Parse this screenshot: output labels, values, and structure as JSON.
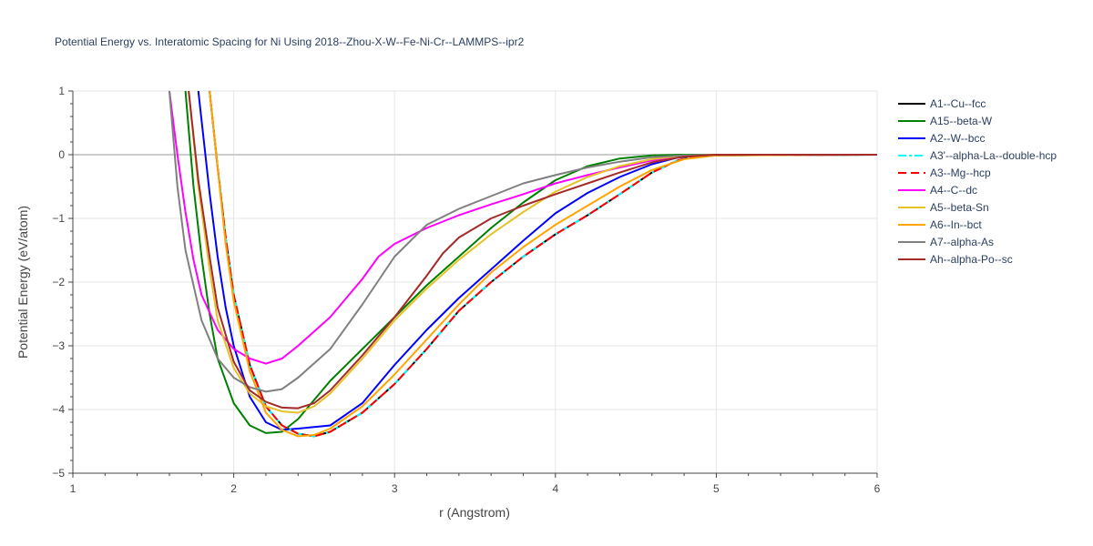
{
  "chart_data": {
    "type": "line",
    "title": "Potential Energy vs. Interatomic Spacing for Ni Using 2018--Zhou-X-W--Fe-Ni-Cr--LAMMPS--ipr2",
    "xlabel": "r (Angstrom)",
    "ylabel": "Potential Energy (eV/atom)",
    "xlim": [
      1,
      6
    ],
    "ylim": [
      -5,
      1
    ],
    "x_ticks": [
      "1",
      "2",
      "3",
      "4",
      "5",
      "6"
    ],
    "y_ticks": [
      "1",
      "0",
      "−1",
      "−2",
      "−3",
      "−4",
      "−5"
    ],
    "grid": true,
    "legend_position": "right",
    "series": [
      {
        "name": "A1--Cu--fcc",
        "color": "#000000",
        "dash": "solid",
        "points": [
          [
            1.85,
            1
          ],
          [
            1.9,
            -0.2
          ],
          [
            1.95,
            -1.3
          ],
          [
            2.0,
            -2.2
          ],
          [
            2.1,
            -3.3
          ],
          [
            2.2,
            -3.95
          ],
          [
            2.3,
            -4.25
          ],
          [
            2.4,
            -4.38
          ],
          [
            2.5,
            -4.42
          ],
          [
            2.6,
            -4.35
          ],
          [
            2.8,
            -4.05
          ],
          [
            3.0,
            -3.6
          ],
          [
            3.2,
            -3.05
          ],
          [
            3.4,
            -2.45
          ],
          [
            3.6,
            -2.0
          ],
          [
            3.8,
            -1.6
          ],
          [
            4.0,
            -1.25
          ],
          [
            4.2,
            -0.95
          ],
          [
            4.4,
            -0.62
          ],
          [
            4.6,
            -0.28
          ],
          [
            4.75,
            -0.1
          ],
          [
            4.85,
            -0.03
          ],
          [
            5.0,
            -0.01
          ],
          [
            6.0,
            0
          ]
        ]
      },
      {
        "name": "A15--beta-W",
        "color": "#008000",
        "dash": "solid",
        "points": [
          [
            1.7,
            1
          ],
          [
            1.75,
            -0.5
          ],
          [
            1.8,
            -1.6
          ],
          [
            1.85,
            -2.5
          ],
          [
            1.9,
            -3.2
          ],
          [
            2.0,
            -3.9
          ],
          [
            2.1,
            -4.25
          ],
          [
            2.2,
            -4.37
          ],
          [
            2.3,
            -4.35
          ],
          [
            2.4,
            -4.15
          ],
          [
            2.5,
            -3.85
          ],
          [
            2.6,
            -3.55
          ],
          [
            2.8,
            -3.05
          ],
          [
            3.0,
            -2.55
          ],
          [
            3.2,
            -2.05
          ],
          [
            3.4,
            -1.6
          ],
          [
            3.6,
            -1.15
          ],
          [
            3.8,
            -0.75
          ],
          [
            4.0,
            -0.4
          ],
          [
            4.2,
            -0.18
          ],
          [
            4.4,
            -0.06
          ],
          [
            4.6,
            -0.01
          ],
          [
            4.8,
            0
          ],
          [
            6.0,
            0
          ]
        ]
      },
      {
        "name": "A2--W--bcc",
        "color": "#0000ff",
        "dash": "solid",
        "points": [
          [
            1.78,
            1
          ],
          [
            1.85,
            -0.6
          ],
          [
            1.9,
            -1.6
          ],
          [
            1.95,
            -2.4
          ],
          [
            2.0,
            -3.0
          ],
          [
            2.1,
            -3.8
          ],
          [
            2.2,
            -4.2
          ],
          [
            2.3,
            -4.32
          ],
          [
            2.4,
            -4.3
          ],
          [
            2.6,
            -4.25
          ],
          [
            2.8,
            -3.9
          ],
          [
            3.0,
            -3.3
          ],
          [
            3.2,
            -2.75
          ],
          [
            3.4,
            -2.25
          ],
          [
            3.6,
            -1.8
          ],
          [
            3.8,
            -1.35
          ],
          [
            4.0,
            -0.92
          ],
          [
            4.2,
            -0.6
          ],
          [
            4.4,
            -0.35
          ],
          [
            4.6,
            -0.15
          ],
          [
            4.75,
            -0.05
          ],
          [
            4.9,
            -0.01
          ],
          [
            6.0,
            0
          ]
        ]
      },
      {
        "name": "A3'--alpha-La--double-hcp",
        "color": "#00ffff",
        "dash": "dashdot",
        "points": [
          [
            1.85,
            1
          ],
          [
            1.9,
            -0.2
          ],
          [
            1.95,
            -1.3
          ],
          [
            2.0,
            -2.2
          ],
          [
            2.1,
            -3.3
          ],
          [
            2.2,
            -3.95
          ],
          [
            2.3,
            -4.25
          ],
          [
            2.4,
            -4.38
          ],
          [
            2.5,
            -4.42
          ],
          [
            2.6,
            -4.35
          ],
          [
            2.8,
            -4.05
          ],
          [
            3.0,
            -3.6
          ],
          [
            3.2,
            -3.05
          ],
          [
            3.4,
            -2.45
          ],
          [
            3.6,
            -2.0
          ],
          [
            3.8,
            -1.6
          ],
          [
            4.0,
            -1.25
          ],
          [
            4.2,
            -0.95
          ],
          [
            4.4,
            -0.62
          ],
          [
            4.6,
            -0.28
          ],
          [
            4.75,
            -0.1
          ],
          [
            4.85,
            -0.03
          ],
          [
            5.0,
            -0.01
          ],
          [
            6.0,
            0
          ]
        ]
      },
      {
        "name": "A3--Mg--hcp",
        "color": "#ff0000",
        "dash": "dash",
        "points": [
          [
            1.85,
            1
          ],
          [
            1.9,
            -0.2
          ],
          [
            1.95,
            -1.3
          ],
          [
            2.0,
            -2.2
          ],
          [
            2.1,
            -3.3
          ],
          [
            2.2,
            -3.95
          ],
          [
            2.3,
            -4.25
          ],
          [
            2.4,
            -4.38
          ],
          [
            2.5,
            -4.42
          ],
          [
            2.6,
            -4.35
          ],
          [
            2.8,
            -4.05
          ],
          [
            3.0,
            -3.6
          ],
          [
            3.2,
            -3.05
          ],
          [
            3.4,
            -2.45
          ],
          [
            3.6,
            -2.0
          ],
          [
            3.8,
            -1.6
          ],
          [
            4.0,
            -1.25
          ],
          [
            4.2,
            -0.95
          ],
          [
            4.4,
            -0.62
          ],
          [
            4.6,
            -0.28
          ],
          [
            4.75,
            -0.1
          ],
          [
            4.85,
            -0.03
          ],
          [
            5.0,
            -0.01
          ],
          [
            6.0,
            0
          ]
        ]
      },
      {
        "name": "A4--C--dc",
        "color": "#ff00ff",
        "dash": "solid",
        "points": [
          [
            1.6,
            1
          ],
          [
            1.65,
            0
          ],
          [
            1.7,
            -0.9
          ],
          [
            1.75,
            -1.65
          ],
          [
            1.8,
            -2.2
          ],
          [
            1.9,
            -2.75
          ],
          [
            2.0,
            -3.05
          ],
          [
            2.1,
            -3.2
          ],
          [
            2.2,
            -3.28
          ],
          [
            2.3,
            -3.2
          ],
          [
            2.4,
            -3.0
          ],
          [
            2.6,
            -2.55
          ],
          [
            2.8,
            -1.95
          ],
          [
            2.9,
            -1.6
          ],
          [
            3.0,
            -1.4
          ],
          [
            3.2,
            -1.15
          ],
          [
            3.4,
            -0.95
          ],
          [
            3.6,
            -0.78
          ],
          [
            3.8,
            -0.62
          ],
          [
            4.0,
            -0.45
          ],
          [
            4.2,
            -0.32
          ],
          [
            4.4,
            -0.2
          ],
          [
            4.6,
            -0.09
          ],
          [
            4.8,
            -0.02
          ],
          [
            5.0,
            0
          ],
          [
            6.0,
            0
          ]
        ]
      },
      {
        "name": "A5--beta-Sn",
        "color": "#e6c229",
        "dash": "solid",
        "points": [
          [
            1.72,
            1
          ],
          [
            1.78,
            -0.5
          ],
          [
            1.85,
            -1.8
          ],
          [
            1.9,
            -2.6
          ],
          [
            2.0,
            -3.35
          ],
          [
            2.1,
            -3.75
          ],
          [
            2.2,
            -3.95
          ],
          [
            2.3,
            -4.03
          ],
          [
            2.4,
            -4.05
          ],
          [
            2.5,
            -3.95
          ],
          [
            2.6,
            -3.75
          ],
          [
            2.8,
            -3.2
          ],
          [
            3.0,
            -2.6
          ],
          [
            3.2,
            -2.1
          ],
          [
            3.4,
            -1.65
          ],
          [
            3.6,
            -1.25
          ],
          [
            3.8,
            -0.9
          ],
          [
            4.0,
            -0.58
          ],
          [
            4.2,
            -0.35
          ],
          [
            4.4,
            -0.18
          ],
          [
            4.6,
            -0.07
          ],
          [
            4.8,
            -0.01
          ],
          [
            5.0,
            0
          ],
          [
            6.0,
            0
          ]
        ]
      },
      {
        "name": "A6--In--bct",
        "color": "#ffa500",
        "dash": "solid",
        "points": [
          [
            1.85,
            1
          ],
          [
            1.9,
            -0.2
          ],
          [
            1.95,
            -1.4
          ],
          [
            2.0,
            -2.3
          ],
          [
            2.1,
            -3.4
          ],
          [
            2.2,
            -4.05
          ],
          [
            2.3,
            -4.32
          ],
          [
            2.4,
            -4.42
          ],
          [
            2.5,
            -4.4
          ],
          [
            2.6,
            -4.3
          ],
          [
            2.8,
            -3.95
          ],
          [
            3.0,
            -3.45
          ],
          [
            3.2,
            -2.9
          ],
          [
            3.4,
            -2.35
          ],
          [
            3.6,
            -1.85
          ],
          [
            3.8,
            -1.45
          ],
          [
            4.0,
            -1.1
          ],
          [
            4.2,
            -0.8
          ],
          [
            4.4,
            -0.5
          ],
          [
            4.6,
            -0.24
          ],
          [
            4.8,
            -0.07
          ],
          [
            5.0,
            -0.01
          ],
          [
            6.0,
            0
          ]
        ]
      },
      {
        "name": "A7--alpha-As",
        "color": "#808080",
        "dash": "solid",
        "points": [
          [
            1.6,
            1
          ],
          [
            1.65,
            -0.5
          ],
          [
            1.7,
            -1.5
          ],
          [
            1.8,
            -2.6
          ],
          [
            1.9,
            -3.2
          ],
          [
            2.0,
            -3.5
          ],
          [
            2.1,
            -3.65
          ],
          [
            2.2,
            -3.72
          ],
          [
            2.3,
            -3.68
          ],
          [
            2.4,
            -3.5
          ],
          [
            2.6,
            -3.05
          ],
          [
            2.8,
            -2.35
          ],
          [
            3.0,
            -1.6
          ],
          [
            3.2,
            -1.1
          ],
          [
            3.4,
            -0.85
          ],
          [
            3.6,
            -0.65
          ],
          [
            3.8,
            -0.45
          ],
          [
            4.0,
            -0.32
          ],
          [
            4.2,
            -0.2
          ],
          [
            4.4,
            -0.11
          ],
          [
            4.6,
            -0.04
          ],
          [
            4.8,
            -0.01
          ],
          [
            5.0,
            0
          ],
          [
            6.0,
            0
          ]
        ]
      },
      {
        "name": "Ah--alpha-Po--sc",
        "color": "#a52a2a",
        "dash": "solid",
        "points": [
          [
            1.72,
            1
          ],
          [
            1.78,
            -0.4
          ],
          [
            1.85,
            -1.6
          ],
          [
            1.9,
            -2.4
          ],
          [
            2.0,
            -3.25
          ],
          [
            2.1,
            -3.7
          ],
          [
            2.2,
            -3.88
          ],
          [
            2.3,
            -3.97
          ],
          [
            2.4,
            -3.98
          ],
          [
            2.5,
            -3.9
          ],
          [
            2.6,
            -3.7
          ],
          [
            2.8,
            -3.15
          ],
          [
            3.0,
            -2.55
          ],
          [
            3.2,
            -1.9
          ],
          [
            3.3,
            -1.55
          ],
          [
            3.4,
            -1.3
          ],
          [
            3.6,
            -1.0
          ],
          [
            3.8,
            -0.8
          ],
          [
            4.0,
            -0.62
          ],
          [
            4.2,
            -0.45
          ],
          [
            4.4,
            -0.28
          ],
          [
            4.6,
            -0.12
          ],
          [
            4.8,
            -0.03
          ],
          [
            5.0,
            0
          ],
          [
            6.0,
            0
          ]
        ]
      }
    ]
  }
}
